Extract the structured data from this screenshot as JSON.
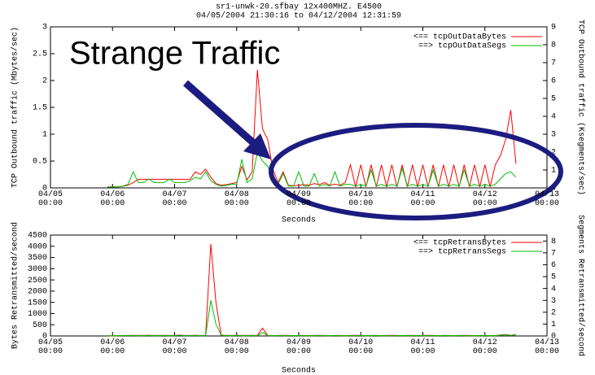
{
  "chart_data": [
    {
      "type": "line",
      "title": "sr1-unwk-20.sfbay  12x400MHZ. E4500",
      "subtitle": "04/05/2004 21:30:16  to  04/12/2004 12:31:59",
      "annotation": "Strange Traffic",
      "xlabel": "Seconds",
      "ylabel": "TCP Outbound traffic (Mbytes/sec)",
      "y2label": "TCP Outbound traffic (Ksegments/sec)",
      "legend": "top-right",
      "xlim": [
        0,
        192
      ],
      "xticks": [
        {
          "value": 0,
          "label": "04/05\n00:00"
        },
        {
          "value": 24,
          "label": "04/06\n00:00"
        },
        {
          "value": 48,
          "label": "04/07\n00:00"
        },
        {
          "value": 72,
          "label": "04/08\n00:00"
        },
        {
          "value": 96,
          "label": "04/09\n00:00"
        },
        {
          "value": 120,
          "label": "04/10\n00:00"
        },
        {
          "value": 144,
          "label": "04/11\n00:00"
        },
        {
          "value": 168,
          "label": "04/12\n00:00"
        },
        {
          "value": 192,
          "label": "04/13\n00:00"
        }
      ],
      "ylim": [
        0,
        3
      ],
      "yticks": [
        0,
        0.5,
        1,
        1.5,
        2,
        2.5,
        3
      ],
      "y2lim": [
        0,
        9
      ],
      "y2ticks": [
        0,
        1,
        2,
        3,
        4,
        5,
        6,
        7,
        8,
        9
      ],
      "x": [
        22,
        24,
        26,
        28,
        30,
        32,
        34,
        36,
        38,
        40,
        42,
        44,
        46,
        48,
        50,
        52,
        54,
        56,
        58,
        60,
        62,
        64,
        66,
        68,
        70,
        72,
        74,
        76,
        78,
        80,
        82,
        84,
        86,
        88,
        90,
        92,
        94,
        96,
        98,
        100,
        102,
        104,
        106,
        108,
        110,
        112,
        114,
        116,
        118,
        120,
        122,
        124,
        126,
        128,
        130,
        132,
        134,
        136,
        138,
        140,
        142,
        144,
        146,
        148,
        150,
        152,
        154,
        156,
        158,
        160,
        162,
        164,
        166,
        168,
        170,
        172,
        174,
        176,
        178,
        180
      ],
      "series": [
        {
          "name": "<== tcpOutDataBytes",
          "color": "#ff0000",
          "values": [
            0.02,
            0.02,
            0.02,
            0.03,
            0.05,
            0.1,
            0.16,
            0.16,
            0.16,
            0.16,
            0.16,
            0.16,
            0.16,
            0.16,
            0.16,
            0.16,
            0.16,
            0.3,
            0.25,
            0.35,
            0.2,
            0.08,
            0.05,
            0.06,
            0.08,
            0.1,
            0.4,
            0.15,
            0.3,
            2.2,
            1.1,
            0.9,
            0.35,
            0.1,
            0.3,
            0.05,
            0.04,
            0.05,
            0.06,
            0.05,
            0.08,
            0.06,
            0.1,
            0.05,
            0.07,
            0.05,
            0.1,
            0.43,
            0.02,
            0.43,
            0.02,
            0.43,
            0.02,
            0.43,
            0.02,
            0.43,
            0.02,
            0.43,
            0.02,
            0.43,
            0.02,
            0.43,
            0.02,
            0.43,
            0.02,
            0.43,
            0.02,
            0.43,
            0.02,
            0.43,
            0.02,
            0.43,
            0.02,
            0.43,
            0.02,
            0.43,
            0.6,
            0.9,
            1.45,
            0.45
          ]
        },
        {
          "name": "==> tcpOutDataSegs",
          "color": "#00c000",
          "axis": "y2",
          "values": [
            0.05,
            0.05,
            0.05,
            0.1,
            0.2,
            0.9,
            0.3,
            0.3,
            0.5,
            0.3,
            0.3,
            0.3,
            0.5,
            0.3,
            0.3,
            0.3,
            0.4,
            0.6,
            0.5,
            0.9,
            0.4,
            0.2,
            0.1,
            0.15,
            0.2,
            0.2,
            1.6,
            0.3,
            0.5,
            2.0,
            1.5,
            1.2,
            0.6,
            0.2,
            0.8,
            0.1,
            0.1,
            0.9,
            0.1,
            0.1,
            0.8,
            0.1,
            0.2,
            0.1,
            0.9,
            0.1,
            0.2,
            0.2,
            0.1,
            0.2,
            0.1,
            1.0,
            0.1,
            0.2,
            0.1,
            0.2,
            0.1,
            1.1,
            0.1,
            0.2,
            0.1,
            0.2,
            0.1,
            1.0,
            0.1,
            0.2,
            0.1,
            0.2,
            0.1,
            1.0,
            0.1,
            0.2,
            0.1,
            0.2,
            0.1,
            0.2,
            0.5,
            0.8,
            0.9,
            0.6
          ]
        }
      ]
    },
    {
      "type": "line",
      "xlabel": "Seconds",
      "ylabel": "Bytes Retransmitted/second",
      "y2label": "Segments Retransmitted/second",
      "legend": "top-right",
      "xlim": [
        0,
        192
      ],
      "xticks": [
        {
          "value": 0,
          "label": "04/05\n00:00"
        },
        {
          "value": 24,
          "label": "04/06\n00:00"
        },
        {
          "value": 48,
          "label": "04/07\n00:00"
        },
        {
          "value": 72,
          "label": "04/08\n00:00"
        },
        {
          "value": 96,
          "label": "04/09\n00:00"
        },
        {
          "value": 120,
          "label": "04/10\n00:00"
        },
        {
          "value": 144,
          "label": "04/11\n00:00"
        },
        {
          "value": 168,
          "label": "04/12\n00:00"
        },
        {
          "value": 192,
          "label": "04/13\n00:00"
        }
      ],
      "ylim": [
        0,
        4500
      ],
      "yticks": [
        0,
        500,
        1000,
        1500,
        2000,
        2500,
        3000,
        3500,
        4000,
        4500
      ],
      "y2lim": [
        0,
        8.5
      ],
      "y2ticks": [
        0,
        1,
        2,
        3,
        4,
        5,
        6,
        7,
        8
      ],
      "x": [
        22,
        24,
        26,
        28,
        30,
        32,
        34,
        36,
        38,
        40,
        42,
        44,
        46,
        48,
        50,
        52,
        54,
        56,
        58,
        60,
        62,
        64,
        66,
        68,
        70,
        72,
        74,
        76,
        78,
        80,
        82,
        84,
        86,
        88,
        90,
        92,
        94,
        96,
        98,
        100,
        102,
        104,
        106,
        108,
        110,
        112,
        114,
        116,
        118,
        120,
        122,
        124,
        126,
        128,
        130,
        132,
        134,
        136,
        138,
        140,
        142,
        144,
        146,
        148,
        150,
        152,
        154,
        156,
        158,
        160,
        162,
        164,
        166,
        168,
        170,
        172,
        174,
        176,
        178,
        180
      ],
      "series": [
        {
          "name": "<== tcpRetransBytes",
          "color": "#ff0000",
          "values": [
            10,
            10,
            15,
            20,
            20,
            25,
            20,
            20,
            30,
            20,
            20,
            25,
            20,
            20,
            40,
            20,
            20,
            30,
            20,
            20,
            4100,
            1500,
            40,
            20,
            20,
            30,
            20,
            20,
            25,
            20,
            350,
            20,
            15,
            20,
            25,
            20,
            15,
            20,
            20,
            15,
            20,
            25,
            20,
            15,
            20,
            20,
            15,
            20,
            25,
            20,
            15,
            20,
            20,
            15,
            20,
            25,
            20,
            15,
            20,
            20,
            15,
            20,
            25,
            20,
            15,
            20,
            20,
            15,
            20,
            25,
            20,
            15,
            20,
            20,
            15,
            20,
            40,
            60,
            30,
            60
          ]
        },
        {
          "name": "==> tcpRetransSegs",
          "color": "#00c000",
          "axis": "y2",
          "values": [
            0.02,
            0.02,
            0.03,
            0.04,
            0.03,
            0.04,
            0.03,
            0.03,
            0.05,
            0.03,
            0.03,
            0.04,
            0.03,
            0.03,
            0.06,
            0.03,
            0.03,
            0.05,
            0.03,
            0.03,
            3.0,
            1.0,
            0.06,
            0.03,
            0.03,
            0.05,
            0.03,
            0.03,
            0.04,
            0.03,
            0.3,
            0.03,
            0.03,
            0.04,
            0.03,
            0.03,
            0.04,
            0.03,
            0.03,
            0.03,
            0.03,
            0.04,
            0.03,
            0.03,
            0.04,
            0.03,
            0.03,
            0.03,
            0.03,
            0.04,
            0.03,
            0.03,
            0.04,
            0.03,
            0.03,
            0.03,
            0.03,
            0.04,
            0.03,
            0.03,
            0.04,
            0.03,
            0.03,
            0.03,
            0.03,
            0.04,
            0.03,
            0.03,
            0.04,
            0.03,
            0.03,
            0.03,
            0.03,
            0.04,
            0.03,
            0.03,
            0.06,
            0.1,
            0.05,
            0.1
          ]
        }
      ]
    }
  ]
}
